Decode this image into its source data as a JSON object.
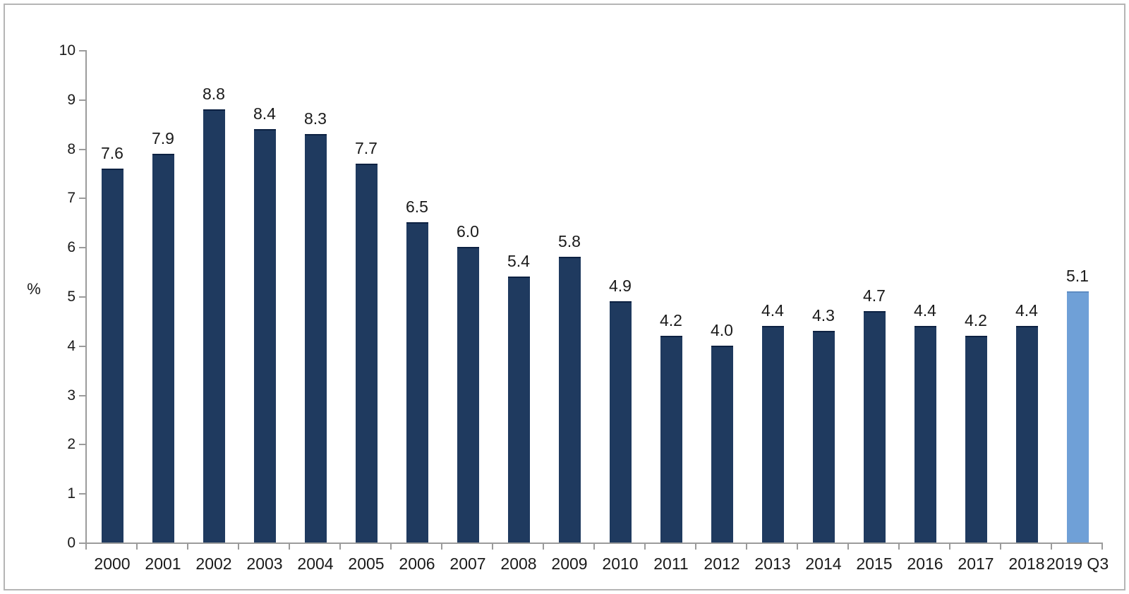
{
  "chart_data": {
    "type": "bar",
    "title": "",
    "xlabel": "",
    "ylabel": "%",
    "ylim": [
      0,
      10
    ],
    "y_ticks": [
      0,
      1,
      2,
      3,
      4,
      5,
      6,
      7,
      8,
      9,
      10
    ],
    "grid": false,
    "legend": false,
    "categories": [
      "2000",
      "2001",
      "2002",
      "2003",
      "2004",
      "2005",
      "2006",
      "2007",
      "2008",
      "2009",
      "2010",
      "2011",
      "2012",
      "2013",
      "2014",
      "2015",
      "2016",
      "2017",
      "2018",
      "2019 Q3"
    ],
    "values": [
      7.6,
      7.9,
      8.8,
      8.4,
      8.3,
      7.7,
      6.5,
      6.0,
      5.4,
      5.8,
      4.9,
      4.2,
      4.0,
      4.4,
      4.3,
      4.7,
      4.4,
      4.2,
      4.4,
      5.1
    ],
    "value_labels": [
      "7.6",
      "7.9",
      "8.8",
      "8.4",
      "8.3",
      "7.7",
      "6.5",
      "6.0",
      "5.4",
      "5.8",
      "4.9",
      "4.2",
      "4.0",
      "4.4",
      "4.3",
      "4.7",
      "4.4",
      "4.2",
      "4.4",
      "5.1"
    ],
    "bar_color": "#1f3a5f",
    "bar_top_edge_color": "#0c2142",
    "highlight_index": 19,
    "highlight_color": "#6fa0d7",
    "highlight_top_edge_color": "#5d8cc2",
    "axis_color": "#9b9b9b",
    "text_color": "#1a1a1a",
    "frame_border_color": "#b5b5b5"
  }
}
